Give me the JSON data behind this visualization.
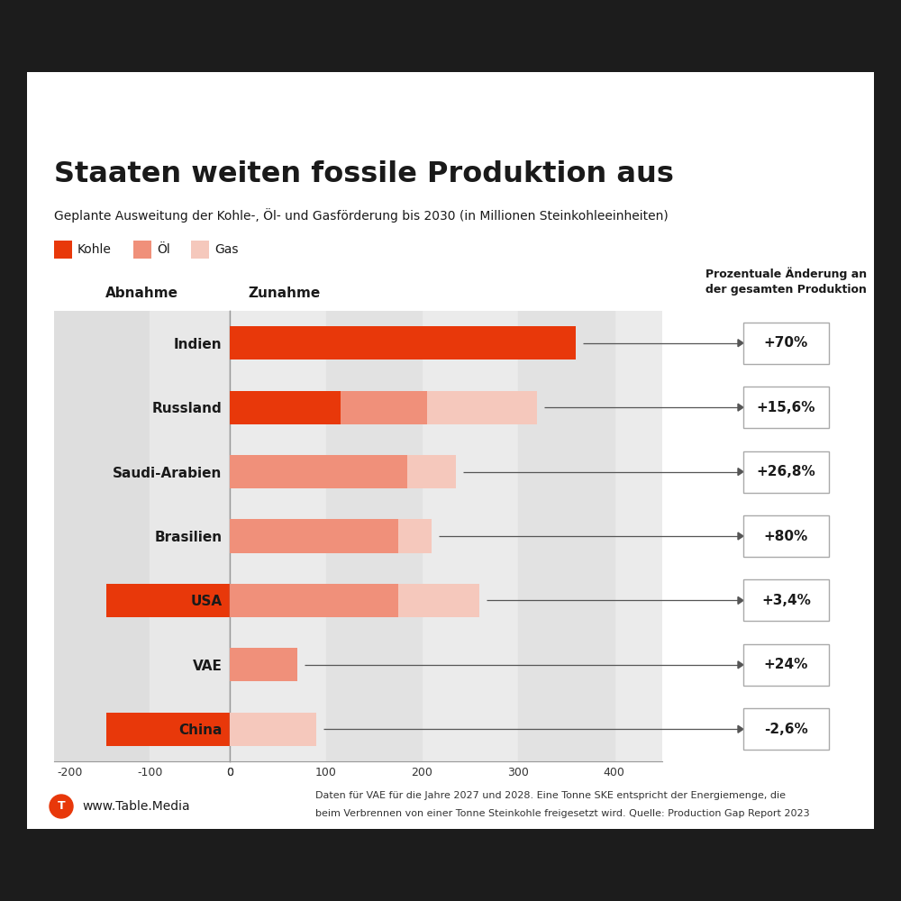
{
  "title": "Staaten weiten fossile Produktion aus",
  "subtitle": "Geplante Ausweitung der Kohle-, Öl- und Gasförderung bis 2030 (in Millionen Steinkohleeinheiten)",
  "countries": [
    "Indien",
    "Russland",
    "Saudi-Arabien",
    "Brasilien",
    "USA",
    "VAE",
    "China"
  ],
  "kohle_pos": [
    360,
    115,
    0,
    0,
    0,
    0,
    0
  ],
  "oel_pos": [
    0,
    90,
    185,
    175,
    175,
    70,
    0
  ],
  "gas_pos": [
    0,
    115,
    50,
    35,
    85,
    0,
    90
  ],
  "kohle_neg": [
    0,
    0,
    0,
    0,
    -155,
    0,
    -155
  ],
  "pct_labels": [
    "+70%",
    "+15,6%",
    "+26,8%",
    "+80%",
    "+3,4%",
    "+24%",
    "-2,6%"
  ],
  "color_kohle": "#E8380A",
  "color_oel": "#F0907A",
  "color_gas": "#F5C8BC",
  "color_bg_left": "#E8E8E8",
  "color_bg_right_light": "#EBEBEB",
  "color_bg_right_dark": "#E0E0E0",
  "color_black": "#1A1A1A",
  "footer_logo_color": "#E8380A",
  "footer_text": "www.Table.Media",
  "footnote_line1": "Daten für VAE für die Jahre 2027 und 2028. Eine Tonne SKE entspricht der Energiemenge, die",
  "footnote_line2": "beim Verbrennen von einer Tonne Steinkohle freigesetzt wird. Quelle: Production Gap Report 2023",
  "bg_color": "#FFFFFF",
  "outer_bg": "#1C1C1C"
}
